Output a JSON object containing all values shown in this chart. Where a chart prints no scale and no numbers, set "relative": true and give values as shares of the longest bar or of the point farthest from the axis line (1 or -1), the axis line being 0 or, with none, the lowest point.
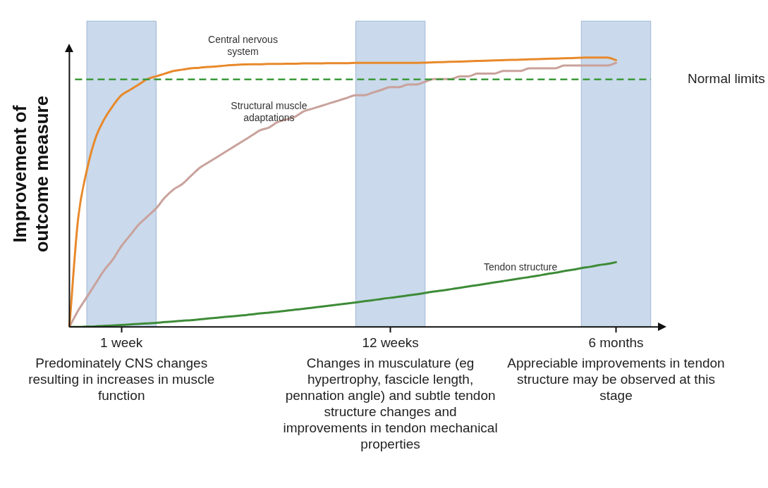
{
  "chart_data": {
    "type": "line",
    "relative": true,
    "ylabel": "Improvement of outcome measure",
    "categories": [
      null,
      null,
      null,
      null,
      null,
      null,
      "1 week",
      null,
      null,
      null,
      null,
      null,
      null,
      null,
      null,
      null,
      null,
      null,
      null,
      null,
      null,
      null,
      null,
      null,
      null,
      null,
      null,
      null,
      null,
      null,
      null,
      null,
      null,
      null,
      null,
      null,
      null,
      "12 weeks",
      null,
      null,
      null,
      null,
      null,
      null,
      null,
      null,
      null,
      null,
      null,
      null,
      null,
      null,
      null,
      null,
      null,
      null,
      null,
      null,
      null,
      null,
      null,
      null,
      null,
      "6 months",
      null,
      null,
      null,
      null,
      null
    ],
    "series": [
      {
        "name": "Central nervous system",
        "color": "#e8892b",
        "values": [
          0,
          0.4,
          0.58,
          0.7,
          0.77,
          0.82,
          0.86,
          0.88,
          0.9,
          0.92,
          0.93,
          0.94,
          0.95,
          0.955,
          0.96,
          0.962,
          0.965,
          0.967,
          0.97,
          0.972,
          0.974,
          0.975,
          0.975,
          0.976,
          0.976,
          0.977,
          0.977,
          0.978,
          0.978,
          0.978,
          0.979,
          0.979,
          0.979,
          0.98,
          0.98,
          0.98,
          0.98,
          0.98,
          0.98,
          0.98,
          0.98,
          0.981,
          0.982,
          0.983,
          0.984,
          0.985,
          0.986,
          0.987,
          0.988,
          0.989,
          0.99,
          0.991,
          0.992,
          0.993,
          0.994,
          0.995,
          0.996,
          0.997,
          0.998,
          0.999,
          1,
          1,
          1,
          0.99,
          null,
          null,
          null,
          null,
          null
        ]
      },
      {
        "name": "Structural muscle adaptations",
        "color": "#c9a29c",
        "values": [
          0,
          0.06,
          0.11,
          0.16,
          0.21,
          0.25,
          0.3,
          0.34,
          0.38,
          0.41,
          0.44,
          0.48,
          0.51,
          0.53,
          0.56,
          0.59,
          0.61,
          0.63,
          0.65,
          0.67,
          0.69,
          0.71,
          0.73,
          0.74,
          0.76,
          0.77,
          0.78,
          0.8,
          0.81,
          0.82,
          0.83,
          0.84,
          0.85,
          0.86,
          0.86,
          0.87,
          0.88,
          0.89,
          0.89,
          0.9,
          0.9,
          0.91,
          0.92,
          0.92,
          0.92,
          0.93,
          0.93,
          0.94,
          0.94,
          0.94,
          0.95,
          0.95,
          0.95,
          0.96,
          0.96,
          0.96,
          0.96,
          0.97,
          0.97,
          0.97,
          0.97,
          0.97,
          0.97,
          0.98,
          null,
          null,
          null,
          null,
          null
        ]
      },
      {
        "name": "Tendon structure",
        "color": "#3d8b37",
        "values": [
          0,
          0,
          0.001,
          0.002,
          0.004,
          0.005,
          0.007,
          0.009,
          0.011,
          0.013,
          0.015,
          0.018,
          0.02,
          0.023,
          0.025,
          0.028,
          0.031,
          0.034,
          0.037,
          0.04,
          0.043,
          0.046,
          0.05,
          0.053,
          0.056,
          0.06,
          0.064,
          0.067,
          0.071,
          0.075,
          0.079,
          0.083,
          0.087,
          0.091,
          0.095,
          0.099,
          0.104,
          0.108,
          0.112,
          0.117,
          0.121,
          0.126,
          0.131,
          0.135,
          0.14,
          0.145,
          0.15,
          0.155,
          0.16,
          0.165,
          0.17,
          0.175,
          0.18,
          0.185,
          0.19,
          0.196,
          0.201,
          0.207,
          0.212,
          0.218,
          0.223,
          0.229,
          0.234,
          0.24,
          null,
          null,
          null,
          null,
          null
        ]
      }
    ],
    "ref_lines": [
      {
        "axis": "y",
        "value": 0.919,
        "label": "Normal limits",
        "color": "#3d9a3d",
        "line_style": "dashed"
      }
    ],
    "annotations": [
      "Predominately CNS changes resulting in increases in muscle function",
      "Changes in musculature (eg hypertrophy, fascicle length, pennation angle) and subtle tendon structure changes and improvements in tendon mechanical properties",
      "Appreciable improvements in tendon structure may be observed at this stage"
    ],
    "marker": "none",
    "line_style": "solid",
    "grid": false,
    "legend": false
  }
}
